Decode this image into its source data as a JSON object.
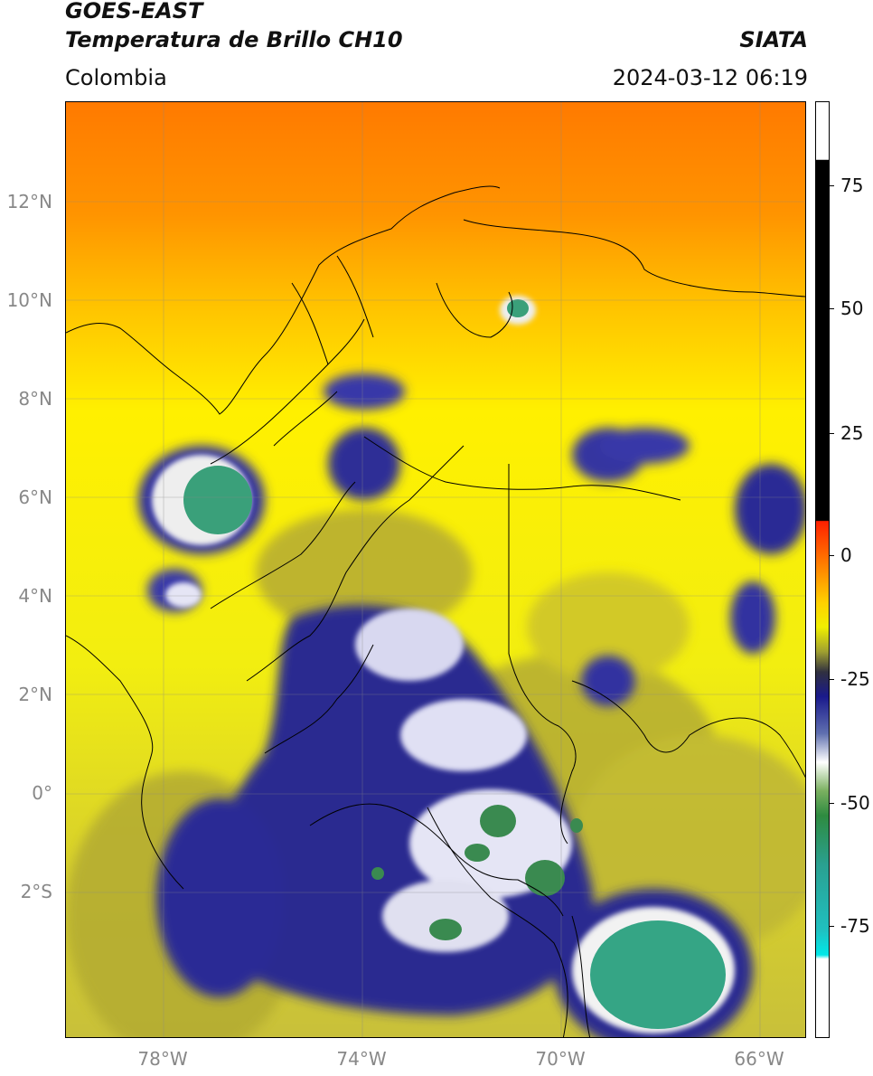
{
  "header": {
    "line1": "GOES-EAST",
    "line2": "Temperatura de Brillo CH10",
    "org": "SIATA",
    "region": "Colombia",
    "timestamp": "2024-03-12 06:19"
  },
  "map": {
    "lat_labels": [
      "12°N",
      "10°N",
      "8°N",
      "6°N",
      "4°N",
      "2°N",
      "0°",
      "2°S"
    ],
    "lon_labels": [
      "78°W",
      "74°W",
      "70°W",
      "66°W"
    ],
    "colors": {
      "orange": "#ff8c00",
      "yellow": "#ffff00",
      "olive": "#9b9b2a",
      "navy": "#1a1a8c",
      "white": "#f0f0f0",
      "green": "#2e8b57",
      "teal": "#2ca88a"
    }
  },
  "colorbar": {
    "labels": [
      "75",
      "50",
      "25",
      "0",
      "-25",
      "-50",
      "-75"
    ],
    "values": [
      75,
      50,
      25,
      0,
      -25,
      -50,
      -75
    ],
    "range": [
      -95,
      90
    ]
  }
}
